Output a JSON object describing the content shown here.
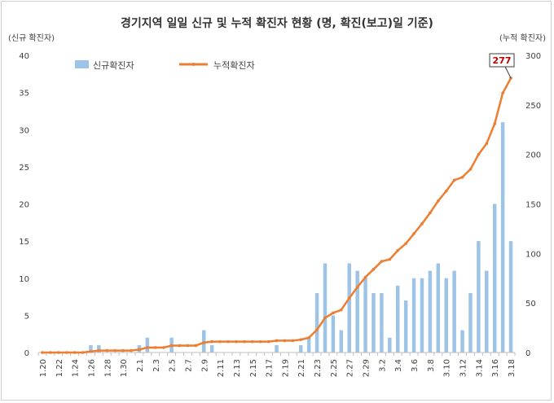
{
  "chart_data": {
    "type": "bar+line",
    "title": "경기지역 일일 신규 및 누적 확진자 현황 (명, 확진(보고)일 기준)",
    "ylabel_left": "(신규 확진자)",
    "ylabel_right": "(누적 확진자)",
    "ylim_left": [
      0,
      40
    ],
    "ylim_right": [
      0,
      300
    ],
    "yticks_left": [
      0,
      5,
      10,
      15,
      20,
      25,
      30,
      35,
      40
    ],
    "yticks_right": [
      0,
      50,
      100,
      150,
      200,
      250,
      300
    ],
    "grid": false,
    "legend_position": "top-left",
    "x": [
      "1.20",
      "1.21",
      "1.22",
      "1.23",
      "1.24",
      "1.25",
      "1.26",
      "1.27",
      "1.28",
      "1.29",
      "1.30",
      "1.31",
      "2.1",
      "2.2",
      "2.3",
      "2.4",
      "2.5",
      "2.6",
      "2.7",
      "2.8",
      "2.9",
      "2.10",
      "2.11",
      "2.12",
      "2.13",
      "2.14",
      "2.15",
      "2.16",
      "2.17",
      "2.18",
      "2.19",
      "2.20",
      "2.21",
      "2.22",
      "2.23",
      "2.24",
      "2.25",
      "2.26",
      "2.27",
      "2.28",
      "2.29",
      "3.1",
      "3.2",
      "3.3",
      "3.4",
      "3.5",
      "3.6",
      "3.7",
      "3.8",
      "3.9",
      "3.10",
      "3.11",
      "3.12",
      "3.13",
      "3.14",
      "3.15",
      "3.16",
      "3.17",
      "3.18"
    ],
    "x_tick_labels": [
      "1.20",
      "1.22",
      "1.24",
      "1.26",
      "1.28",
      "1.30",
      "2.1",
      "2.3",
      "2.5",
      "2.7",
      "2.9",
      "2.11",
      "2.13",
      "2.15",
      "2.17",
      "2.19",
      "2.21",
      "2.23",
      "2.25",
      "2.27",
      "2.29",
      "3.2",
      "3.4",
      "3.6",
      "3.8",
      "3.10",
      "3.12",
      "3.14",
      "3.16",
      "3.18"
    ],
    "series": [
      {
        "name": "신규확진자",
        "type": "bar",
        "axis": "left",
        "color": "#9dc3e6",
        "values": [
          0,
          0,
          0,
          0,
          0,
          0,
          1,
          1,
          0,
          0,
          0,
          0,
          1,
          2,
          0,
          0,
          2,
          0,
          0,
          0,
          3,
          1,
          0,
          0,
          0,
          0,
          0,
          0,
          0,
          1,
          0,
          0,
          1,
          2,
          8,
          12,
          5,
          3,
          12,
          11,
          10,
          8,
          8,
          2,
          9,
          7,
          10,
          10,
          11,
          12,
          10,
          11,
          3,
          8,
          15,
          11,
          20,
          31,
          15
        ]
      },
      {
        "name": "누적확진자",
        "type": "line",
        "axis": "right",
        "color": "#ed7d31",
        "values": [
          0,
          0,
          0,
          0,
          0,
          0,
          1,
          2,
          2,
          2,
          2,
          2,
          3,
          5,
          5,
          5,
          7,
          7,
          7,
          7,
          10,
          11,
          11,
          11,
          11,
          11,
          11,
          11,
          11,
          12,
          12,
          12,
          13,
          15,
          23,
          35,
          40,
          43,
          55,
          66,
          76,
          84,
          92,
          94,
          103,
          110,
          120,
          130,
          141,
          153,
          163,
          174,
          177,
          185,
          200,
          211,
          231,
          262,
          277
        ]
      }
    ],
    "annotation": {
      "text": "277",
      "color": "#c00000"
    }
  }
}
